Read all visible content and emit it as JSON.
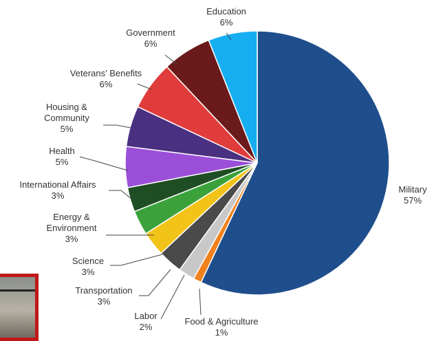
{
  "chart_data": {
    "type": "pie",
    "categories": [
      "Military",
      "Food & Agriculture",
      "Labor",
      "Transportation",
      "Science",
      "Energy & Environment",
      "International Affairs",
      "Health",
      "Housing & Community",
      "Veterans' Benefits",
      "Government",
      "Education"
    ],
    "values": [
      57,
      1,
      2,
      3,
      3,
      3,
      3,
      5,
      5,
      6,
      6,
      6
    ],
    "value_labels": [
      "57%",
      "1%",
      "2%",
      "3%",
      "3%",
      "3%",
      "3%",
      "5%",
      "5%",
      "6%",
      "6%",
      "6%"
    ],
    "label_lines": [
      [
        "Military"
      ],
      [
        "Food & Agriculture"
      ],
      [
        "Labor"
      ],
      [
        "Transportation"
      ],
      [
        "Science"
      ],
      [
        "Energy &",
        "Environment"
      ],
      [
        "International  Affairs"
      ],
      [
        "Health"
      ],
      [
        "Housing &",
        "Community"
      ],
      [
        "Veterans'  Benefits"
      ],
      [
        "Government"
      ],
      [
        "Education"
      ]
    ],
    "colors": [
      "#1f4e8c",
      "#f0821e",
      "#c8c8c8",
      "#4a4a4a",
      "#f2c318",
      "#3ba23b",
      "#1f4d24",
      "#9b4fd8",
      "#4a3080",
      "#e03c3c",
      "#6a1a1a",
      "#16aef0"
    ],
    "start_angle": "12 o'clock",
    "direction": "clockwise"
  },
  "thumbnail": {
    "description_icon": "photo-thumbnail-icon"
  }
}
